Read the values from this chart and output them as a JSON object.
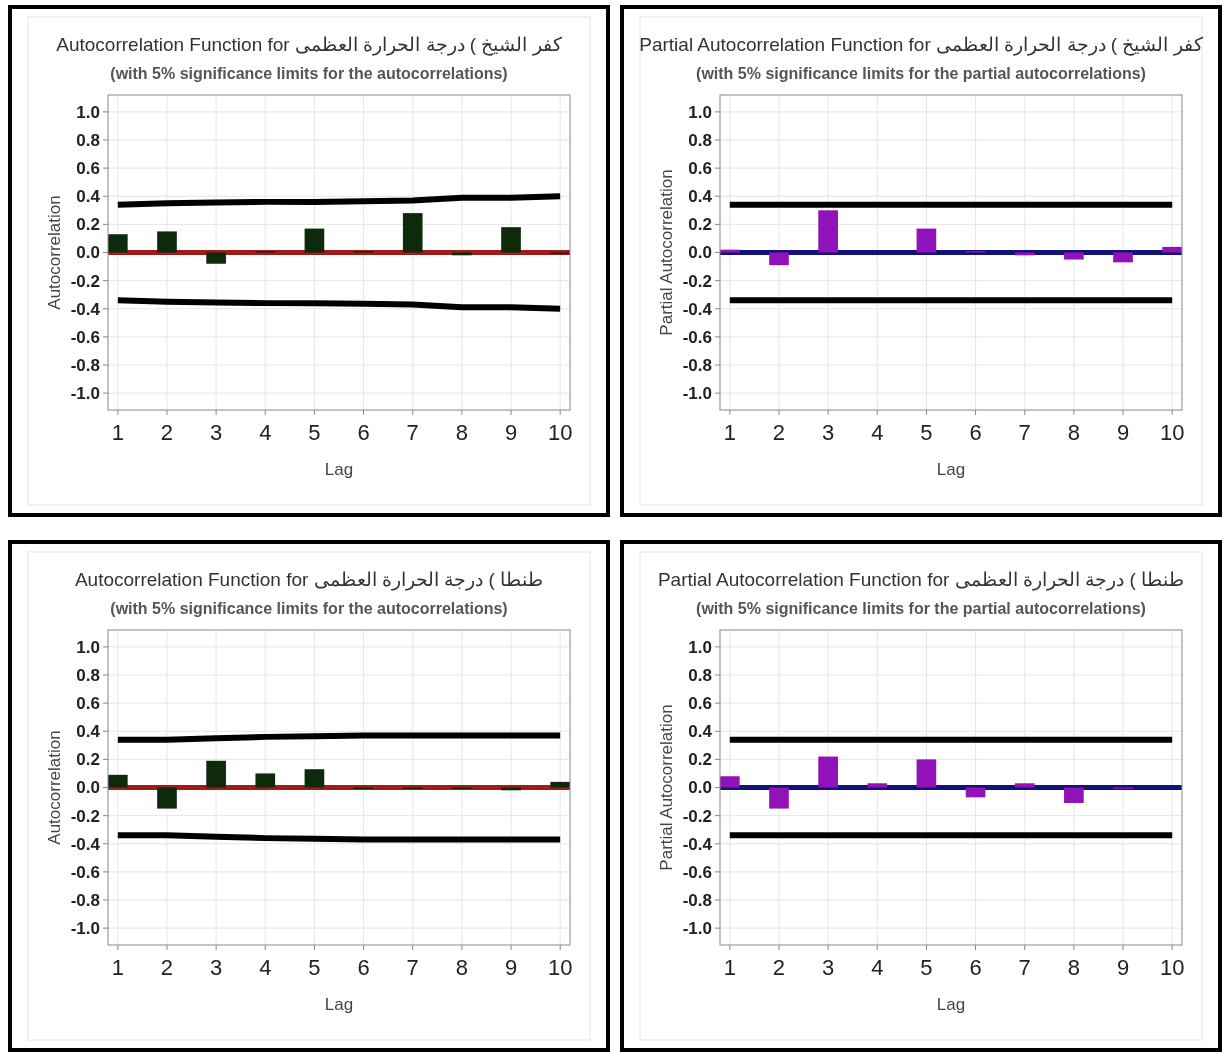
{
  "chart_data": [
    {
      "type": "bar",
      "title": "Autocorrelation Function for كفر الشيخ ) درجة الحرارة العظمى",
      "subtitle": "(with 5% significance limits for the autocorrelations)",
      "xlabel": "Lag",
      "ylabel": "Autocorrelation",
      "x": [
        1,
        2,
        3,
        4,
        5,
        6,
        7,
        8,
        9,
        10
      ],
      "xlim": [
        0.8,
        10.2
      ],
      "xticks": [
        1,
        2,
        3,
        4,
        5,
        6,
        7,
        8,
        9,
        10
      ],
      "ylim": [
        -1.12,
        1.12
      ],
      "yticks": [
        {
          "value": 1,
          "label": "1.0"
        },
        {
          "value": 0.8,
          "label": "0.8"
        },
        {
          "value": 0.6,
          "label": "0.6"
        },
        {
          "value": 0.4,
          "label": "0.4"
        },
        {
          "value": 0.2,
          "label": "0.2"
        },
        {
          "value": 0,
          "label": "0.0"
        },
        {
          "value": -0.2,
          "label": "-0.2"
        },
        {
          "value": -0.4,
          "label": "-0.4"
        },
        {
          "value": -0.6,
          "label": "-0.6"
        },
        {
          "value": -0.8,
          "label": "-0.8"
        },
        {
          "value": -1,
          "label": "-1.0"
        }
      ],
      "grid": true,
      "ref_lines": [
        {
          "axis": "y",
          "value": 0,
          "color": "#a01c1c"
        }
      ],
      "series": [
        {
          "color": "#0d2b0a",
          "values": [
            0.13,
            0.15,
            -0.08,
            0.01,
            0.17,
            0.01,
            0.28,
            -0.02,
            0.18,
            -0.01
          ]
        },
        {
          "type": "line",
          "color": "#000000",
          "values": [
            0.34,
            0.35,
            0.355,
            0.36,
            0.36,
            0.365,
            0.37,
            0.39,
            0.39,
            0.4
          ]
        },
        {
          "type": "line",
          "color": "#000000",
          "values": [
            -0.34,
            -0.35,
            -0.355,
            -0.36,
            -0.36,
            -0.365,
            -0.37,
            -0.39,
            -0.39,
            -0.4
          ]
        }
      ]
    },
    {
      "type": "bar",
      "title": "Partial Autocorrelation Function for كفر الشيخ ) درجة الحرارة العظمى",
      "subtitle": "(with 5% significance limits for the partial autocorrelations)",
      "xlabel": "Lag",
      "ylabel": "Partial Autocorrelation",
      "x": [
        1,
        2,
        3,
        4,
        5,
        6,
        7,
        8,
        9,
        10
      ],
      "xlim": [
        0.8,
        10.2
      ],
      "xticks": [
        1,
        2,
        3,
        4,
        5,
        6,
        7,
        8,
        9,
        10
      ],
      "ylim": [
        -1.12,
        1.12
      ],
      "yticks": [
        {
          "value": 1,
          "label": "1.0"
        },
        {
          "value": 0.8,
          "label": "0.8"
        },
        {
          "value": 0.6,
          "label": "0.6"
        },
        {
          "value": 0.4,
          "label": "0.4"
        },
        {
          "value": 0.2,
          "label": "0.2"
        },
        {
          "value": 0,
          "label": "0.0"
        },
        {
          "value": -0.2,
          "label": "-0.2"
        },
        {
          "value": -0.4,
          "label": "-0.4"
        },
        {
          "value": -0.6,
          "label": "-0.6"
        },
        {
          "value": -0.8,
          "label": "-0.8"
        },
        {
          "value": -1,
          "label": "-1.0"
        }
      ],
      "grid": true,
      "ref_lines": [
        {
          "axis": "y",
          "value": 0,
          "color": "#12127a"
        }
      ],
      "series": [
        {
          "color": "#9012b8",
          "values": [
            0.02,
            -0.09,
            0.3,
            0.0,
            0.17,
            0.01,
            -0.02,
            -0.05,
            -0.07,
            0.04
          ]
        },
        {
          "type": "line",
          "color": "#000000",
          "values": [
            0.34,
            0.34,
            0.34,
            0.34,
            0.34,
            0.34,
            0.34,
            0.34,
            0.34,
            0.34
          ]
        },
        {
          "type": "line",
          "color": "#000000",
          "values": [
            -0.34,
            -0.34,
            -0.34,
            -0.34,
            -0.34,
            -0.34,
            -0.34,
            -0.34,
            -0.34,
            -0.34
          ]
        }
      ]
    },
    {
      "type": "bar",
      "title": "Autocorrelation Function for طنطا ) درجة الحرارة العظمى",
      "subtitle": "(with 5% significance limits for the autocorrelations)",
      "xlabel": "Lag",
      "ylabel": "Autocorrelation",
      "x": [
        1,
        2,
        3,
        4,
        5,
        6,
        7,
        8,
        9,
        10
      ],
      "xlim": [
        0.8,
        10.2
      ],
      "xticks": [
        1,
        2,
        3,
        4,
        5,
        6,
        7,
        8,
        9,
        10
      ],
      "ylim": [
        -1.12,
        1.12
      ],
      "yticks": [
        {
          "value": 1,
          "label": "1.0"
        },
        {
          "value": 0.8,
          "label": "0.8"
        },
        {
          "value": 0.6,
          "label": "0.6"
        },
        {
          "value": 0.4,
          "label": "0.4"
        },
        {
          "value": 0.2,
          "label": "0.2"
        },
        {
          "value": 0,
          "label": "0.0"
        },
        {
          "value": -0.2,
          "label": "-0.2"
        },
        {
          "value": -0.4,
          "label": "-0.4"
        },
        {
          "value": -0.6,
          "label": "-0.6"
        },
        {
          "value": -0.8,
          "label": "-0.8"
        },
        {
          "value": -1,
          "label": "-1.0"
        }
      ],
      "grid": true,
      "ref_lines": [
        {
          "axis": "y",
          "value": 0,
          "color": "#a01c1c"
        }
      ],
      "series": [
        {
          "color": "#0d2b0a",
          "values": [
            0.09,
            -0.15,
            0.19,
            0.1,
            0.13,
            -0.01,
            -0.01,
            -0.01,
            -0.02,
            0.04
          ]
        },
        {
          "type": "line",
          "color": "#000000",
          "values": [
            0.34,
            0.34,
            0.35,
            0.36,
            0.365,
            0.37,
            0.37,
            0.37,
            0.37,
            0.37
          ]
        },
        {
          "type": "line",
          "color": "#000000",
          "values": [
            -0.34,
            -0.34,
            -0.35,
            -0.36,
            -0.365,
            -0.37,
            -0.37,
            -0.37,
            -0.37,
            -0.37
          ]
        }
      ]
    },
    {
      "type": "bar",
      "title": "Partial Autocorrelation Function for طنطا ) درجة الحرارة العظمى",
      "subtitle": "(with 5% significance limits for the partial autocorrelations)",
      "xlabel": "Lag",
      "ylabel": "Partial Autocorrelation",
      "x": [
        1,
        2,
        3,
        4,
        5,
        6,
        7,
        8,
        9,
        10
      ],
      "xlim": [
        0.8,
        10.2
      ],
      "xticks": [
        1,
        2,
        3,
        4,
        5,
        6,
        7,
        8,
        9,
        10
      ],
      "ylim": [
        -1.12,
        1.12
      ],
      "yticks": [
        {
          "value": 1,
          "label": "1.0"
        },
        {
          "value": 0.8,
          "label": "0.8"
        },
        {
          "value": 0.6,
          "label": "0.6"
        },
        {
          "value": 0.4,
          "label": "0.4"
        },
        {
          "value": 0.2,
          "label": "0.2"
        },
        {
          "value": 0,
          "label": "0.0"
        },
        {
          "value": -0.2,
          "label": "-0.2"
        },
        {
          "value": -0.4,
          "label": "-0.4"
        },
        {
          "value": -0.6,
          "label": "-0.6"
        },
        {
          "value": -0.8,
          "label": "-0.8"
        },
        {
          "value": -1,
          "label": "-1.0"
        }
      ],
      "grid": true,
      "ref_lines": [
        {
          "axis": "y",
          "value": 0,
          "color": "#12127a"
        }
      ],
      "series": [
        {
          "color": "#9012b8",
          "values": [
            0.08,
            -0.15,
            0.22,
            0.03,
            0.2,
            -0.07,
            0.03,
            -0.11,
            -0.01,
            0.0
          ]
        },
        {
          "type": "line",
          "color": "#000000",
          "values": [
            0.34,
            0.34,
            0.34,
            0.34,
            0.34,
            0.34,
            0.34,
            0.34,
            0.34,
            0.34
          ]
        },
        {
          "type": "line",
          "color": "#000000",
          "values": [
            -0.34,
            -0.34,
            -0.34,
            -0.34,
            -0.34,
            -0.34,
            -0.34,
            -0.34,
            -0.34,
            -0.34
          ]
        }
      ]
    }
  ]
}
